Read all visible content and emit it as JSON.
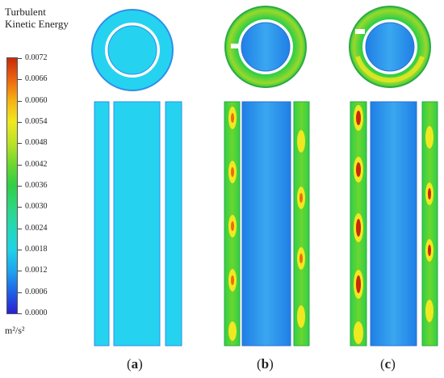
{
  "colorbar": {
    "title_line1": "Turbulent",
    "title_line2": "Kinetic Energy",
    "ticks": [
      "0.0072",
      "0.0066",
      "0.0060",
      "0.0054",
      "0.0048",
      "0.0042",
      "0.0036",
      "0.0030",
      "0.0024",
      "0.0018",
      "0.0012",
      "0.0006",
      "0.0000"
    ],
    "unit": "m²/s²"
  },
  "panels": [
    {
      "open": "(",
      "letter": "a",
      "close": ")"
    },
    {
      "open": "(",
      "letter": "b",
      "close": ")"
    },
    {
      "open": "(",
      "letter": "c",
      "close": ")"
    }
  ],
  "colors": {
    "low": "#2a1fd1",
    "cyan": "#25d3f0",
    "blue": "#2f8fe8",
    "green": "#2fcf47",
    "yellow": "#f0e820",
    "red": "#c92a0a"
  }
}
